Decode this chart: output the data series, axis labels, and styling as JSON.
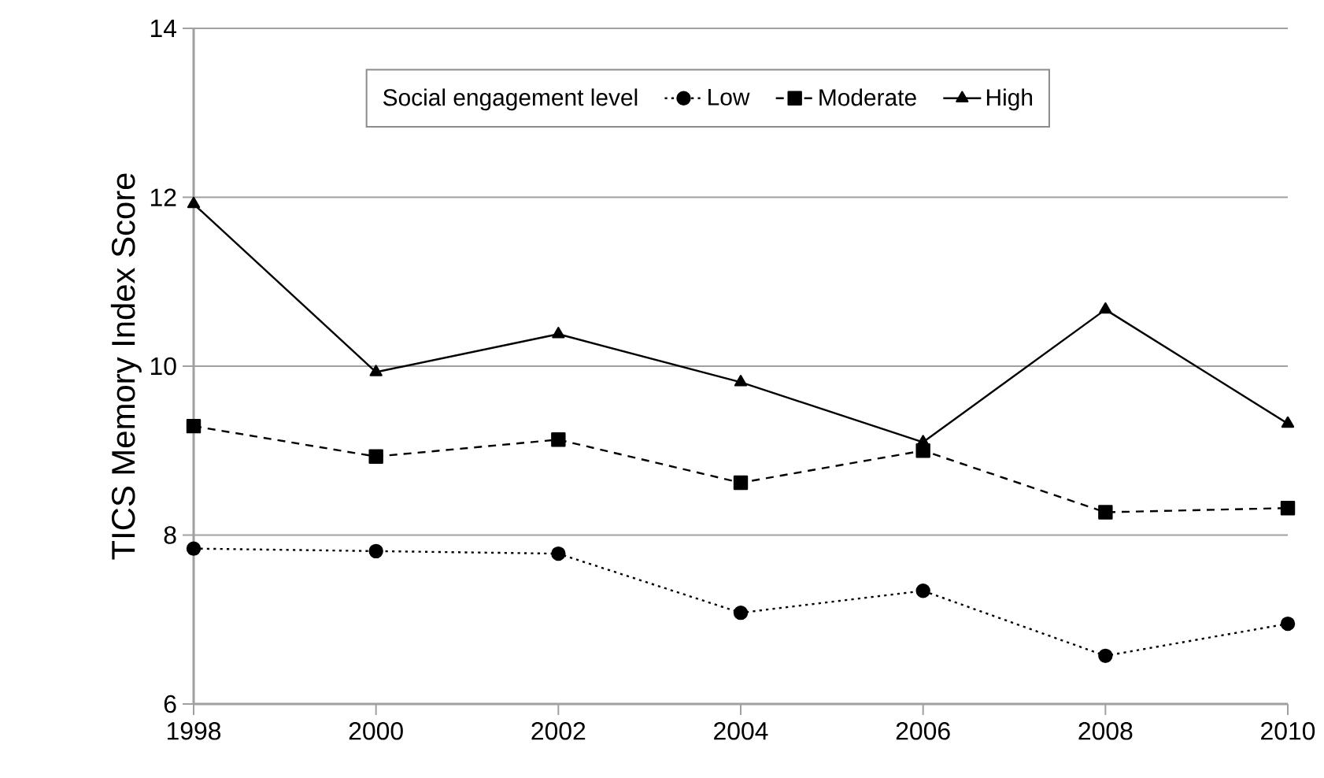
{
  "chart_data": {
    "type": "line",
    "ylabel": "TICS Memory Index Score",
    "legend_title": "Social engagement level",
    "x": [
      1998,
      2000,
      2002,
      2004,
      2006,
      2008,
      2010
    ],
    "series": [
      {
        "name": "Low",
        "color": "#000000",
        "marker": "circle",
        "line_style": "dotted",
        "values": [
          7.84,
          7.81,
          7.78,
          7.08,
          7.34,
          6.57,
          6.95
        ]
      },
      {
        "name": "Moderate",
        "color": "#000000",
        "marker": "square",
        "line_style": "dashed",
        "values": [
          9.29,
          8.93,
          9.13,
          8.62,
          9.0,
          8.27,
          8.32
        ]
      },
      {
        "name": "High",
        "color": "#000000",
        "marker": "triangle",
        "line_style": "solid",
        "values": [
          11.92,
          9.93,
          10.38,
          9.81,
          9.1,
          10.67,
          9.32
        ]
      }
    ],
    "xlim": [
      1998,
      2010
    ],
    "xticks": [
      1998,
      2000,
      2002,
      2004,
      2006,
      2008,
      2010
    ],
    "ylim": [
      6,
      14
    ],
    "yticks": [
      6,
      8,
      10,
      12,
      14
    ],
    "grid": "y",
    "legend": "top"
  }
}
